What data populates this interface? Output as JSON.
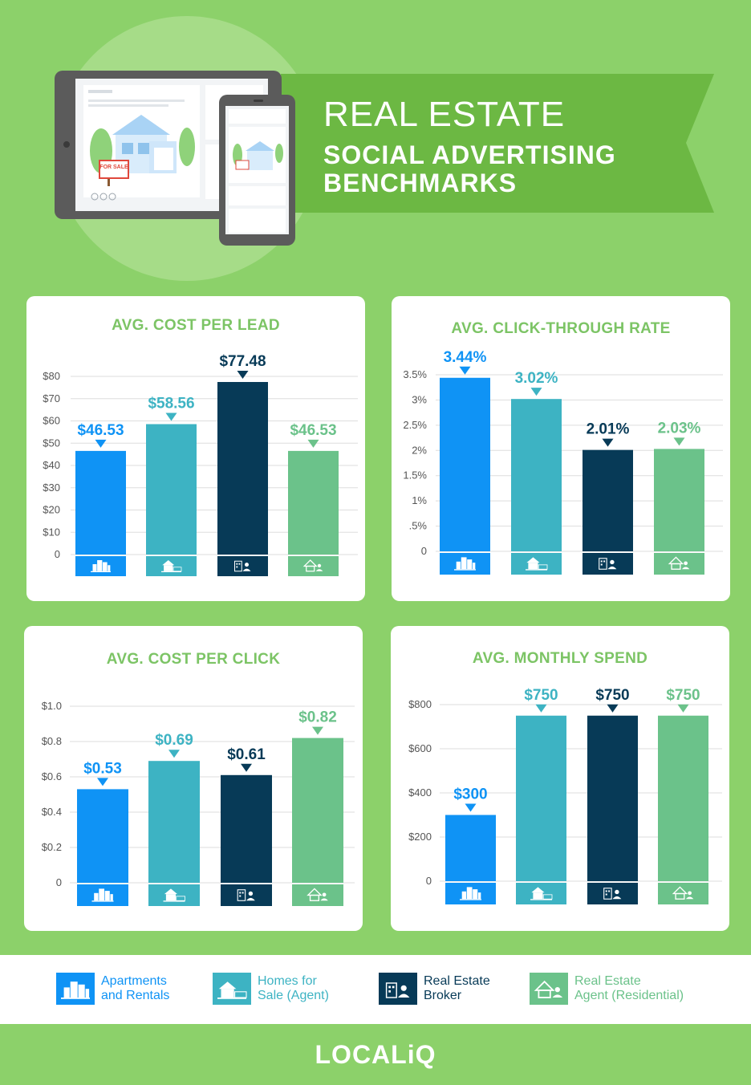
{
  "header": {
    "title_line1": "REAL ESTATE",
    "title_line2": "SOCIAL ADVERTISING",
    "title_line3": "BENCHMARKS"
  },
  "illustration": {
    "for_sale_sign": "FOR SALE"
  },
  "colors": {
    "apartments": "#0f93f5",
    "homes": "#3db3c3",
    "broker": "#073a57",
    "agent": "#6bc28a",
    "accent_green": "#7cc465",
    "background": "#8cd16a"
  },
  "chart_data": [
    {
      "type": "bar",
      "title": "AVG. COST PER LEAD",
      "categories": [
        "Apartments and Rentals",
        "Homes for Sale (Agent)",
        "Real Estate Broker",
        "Real Estate Agent (Residential)"
      ],
      "values": [
        46.53,
        58.56,
        77.48,
        46.53
      ],
      "value_labels": [
        "$46.53",
        "$58.56",
        "$77.48",
        "$46.53"
      ],
      "yticks": [
        "0",
        "$10",
        "$20",
        "$30",
        "$40",
        "$50",
        "$60",
        "$70",
        "$80"
      ],
      "ylim": [
        0,
        80
      ]
    },
    {
      "type": "bar",
      "title": "AVG. CLICK-THROUGH RATE",
      "categories": [
        "Apartments and Rentals",
        "Homes for Sale (Agent)",
        "Real Estate Broker",
        "Real Estate Agent (Residential)"
      ],
      "values": [
        3.44,
        3.02,
        2.01,
        2.03
      ],
      "value_labels": [
        "3.44%",
        "3.02%",
        "2.01%",
        "2.03%"
      ],
      "yticks": [
        "0",
        ".5%",
        "1%",
        "1.5%",
        "2%",
        "2.5%",
        "3%",
        "3.5%"
      ],
      "ylim": [
        0,
        3.5
      ]
    },
    {
      "type": "bar",
      "title": "AVG. COST PER CLICK",
      "categories": [
        "Apartments and Rentals",
        "Homes for Sale (Agent)",
        "Real Estate Broker",
        "Real Estate Agent (Residential)"
      ],
      "values": [
        0.53,
        0.69,
        0.61,
        0.82
      ],
      "value_labels": [
        "$0.53",
        "$0.69",
        "$0.61",
        "$0.82"
      ],
      "yticks": [
        "0",
        "$0.2",
        "$0.4",
        "$0.6",
        "$0.8",
        "$1.0"
      ],
      "ylim": [
        0,
        1.0
      ]
    },
    {
      "type": "bar",
      "title": "AVG. MONTHLY SPEND",
      "categories": [
        "Apartments and Rentals",
        "Homes for Sale (Agent)",
        "Real Estate Broker",
        "Real Estate Agent (Residential)"
      ],
      "values": [
        300,
        750,
        750,
        750
      ],
      "value_labels": [
        "$300",
        "$750",
        "$750",
        "$750"
      ],
      "yticks": [
        "0",
        "$200",
        "$400",
        "$600",
        "$800"
      ],
      "ylim": [
        0,
        800
      ]
    }
  ],
  "legend": [
    {
      "line1": "Apartments",
      "line2": "and Rentals",
      "icon": "apartment-buildings-icon",
      "color": "#0f93f5"
    },
    {
      "line1": "Homes for",
      "line2": "Sale (Agent)",
      "icon": "house-for-sale-icon",
      "color": "#3db3c3"
    },
    {
      "line1": "Real Estate",
      "line2": "Broker",
      "icon": "broker-office-icon",
      "color": "#073a57"
    },
    {
      "line1": "Real Estate",
      "line2": "Agent (Residential)",
      "icon": "agent-house-icon",
      "color": "#6bc28a"
    }
  ],
  "footer": {
    "logo": "LOCALiQ"
  }
}
